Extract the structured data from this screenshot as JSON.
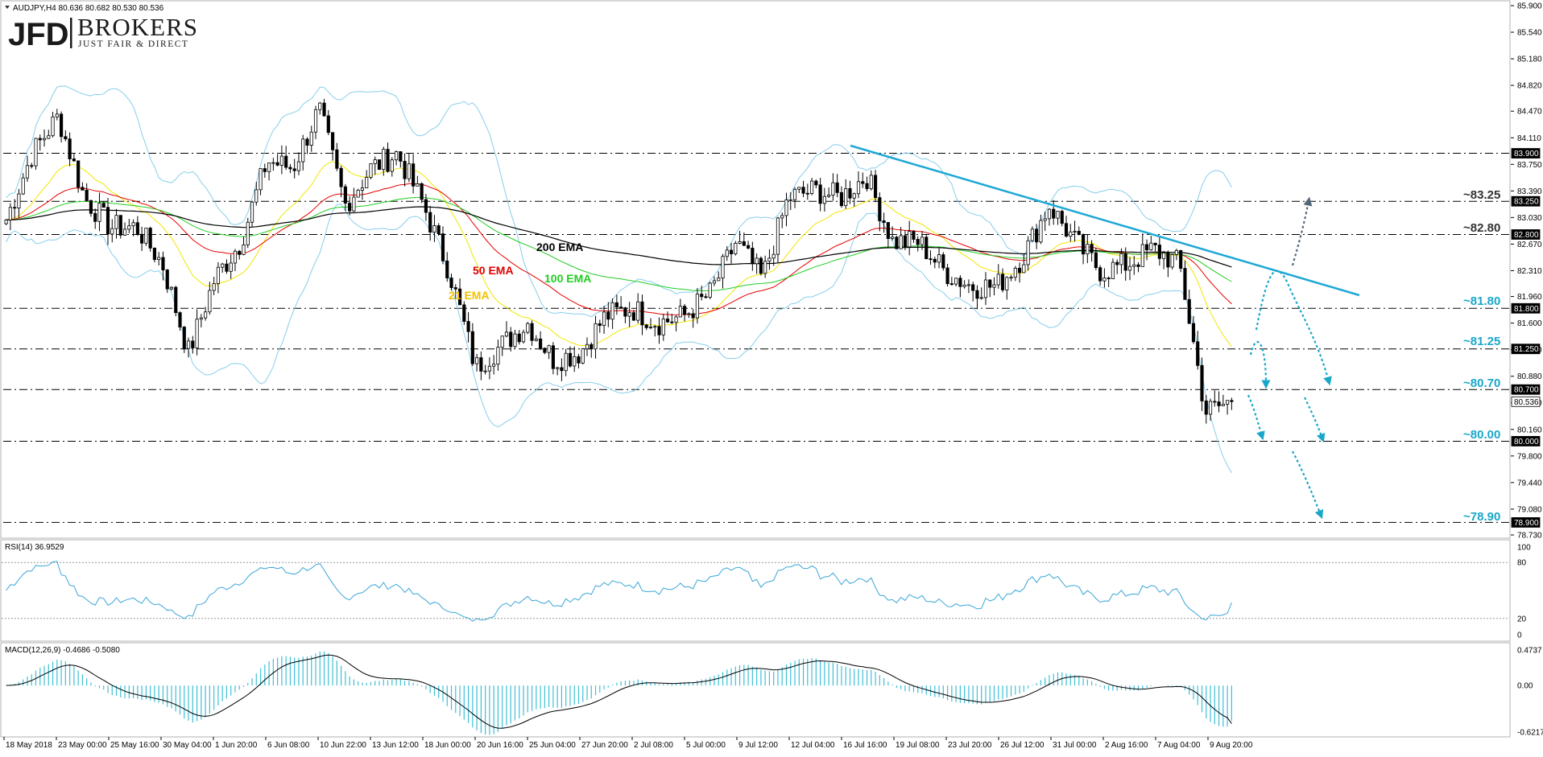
{
  "header": {
    "symbol_line": "AUDJPY,H4  80.636 80.682 80.530 80.536"
  },
  "logo": {
    "brand": "JFD",
    "name": "BROKERS",
    "tagline": "JUST FAIR & DIRECT"
  },
  "colors": {
    "candle": "#000000",
    "bollinger": "#87ceeb",
    "ema21": "#f2e600",
    "ema50": "#e60000",
    "ema100": "#22cc22",
    "ema200": "#000000",
    "trendline": "#1fa8d6",
    "level_label": "#19a7c9",
    "forecast_down": "#19a7c9",
    "forecast_up": "#556677",
    "rsi": "#3aa5d8",
    "macd_hist": "#3fbfd6",
    "macd_signal": "#000000"
  },
  "indicators": {
    "rsi_label": "RSI(14) 36.9529",
    "macd_label": "MACD(12,26,9) -0.4686 -0.5080"
  },
  "price_axis": {
    "ticks": [
      "85.900",
      "85.540",
      "85.180",
      "84.820",
      "84.470",
      "84.110",
      "83.750",
      "83.390",
      "83.030",
      "82.670",
      "82.310",
      "81.960",
      "81.600",
      "81.240",
      "80.880",
      "80.520",
      "80.160",
      "79.800",
      "79.440",
      "79.080",
      "78.730"
    ],
    "boxes": [
      {
        "value": "83.900",
        "price": 83.9
      },
      {
        "value": "83.250",
        "price": 83.25
      },
      {
        "value": "82.800",
        "price": 82.8
      },
      {
        "value": "81.800",
        "price": 81.8
      },
      {
        "value": "81.250",
        "price": 81.25
      },
      {
        "value": "80.700",
        "price": 80.7
      },
      {
        "value": "80.536",
        "price": 80.536
      },
      {
        "value": "80.000",
        "price": 80.0
      },
      {
        "value": "78.900",
        "price": 78.9
      }
    ]
  },
  "rsi_axis": {
    "ticks": [
      "100",
      "80",
      "20",
      "0"
    ]
  },
  "macd_axis": {
    "ticks": [
      "0.4737",
      "0.00",
      "-0.6217"
    ]
  },
  "time_axis": {
    "ticks": [
      "18 May 2018",
      "23 May 00:00",
      "25 May 16:00",
      "30 May 04:00",
      "1 Jun 20:00",
      "6 Jun 08:00",
      "10 Jun 22:00",
      "13 Jun 12:00",
      "18 Jun 00:00",
      "20 Jun 16:00",
      "25 Jun 04:00",
      "27 Jun 20:00",
      "2 Jul 08:00",
      "5 Jul 00:00",
      "9 Jul 12:00",
      "12 Jul 04:00",
      "16 Jul 16:00",
      "19 Jul 08:00",
      "23 Jul 20:00",
      "26 Jul 12:00",
      "31 Jul 00:00",
      "2 Aug 16:00",
      "7 Aug 04:00",
      "9 Aug 20:00"
    ]
  },
  "annotations": {
    "ema_labels": [
      "200 EMA",
      "50 EMA",
      "100 EMA",
      "21 EMA"
    ],
    "level_labels": [
      "~83.25",
      "~82.80",
      "~81.80",
      "~81.25",
      "~80.70",
      "~80.00",
      "~78.90"
    ]
  },
  "chart_data": {
    "type": "candlestick",
    "symbol": "AUDJPY",
    "timeframe": "H4",
    "last": {
      "open": 80.636,
      "high": 80.682,
      "low": 80.53,
      "close": 80.536
    },
    "ylim": [
      78.73,
      85.9
    ],
    "horizontal_levels": [
      83.9,
      83.25,
      82.8,
      81.8,
      81.25,
      80.7,
      80.0,
      78.9
    ],
    "close_path": [
      [
        "18 May 2018",
        83.0
      ],
      [
        "19 May",
        83.9
      ],
      [
        "21 May",
        84.4
      ],
      [
        "22 May",
        83.3
      ],
      [
        "23 May 00:00",
        82.9
      ],
      [
        "24 May",
        82.9
      ],
      [
        "25 May 16:00",
        82.4
      ],
      [
        "27 May",
        81.2
      ],
      [
        "30 May 04:00",
        82.2
      ],
      [
        "31 May",
        82.7
      ],
      [
        "1 Jun 20:00",
        83.8
      ],
      [
        "3 Jun",
        83.7
      ],
      [
        "6 Jun 08:00",
        84.5
      ],
      [
        "8 Jun",
        83.2
      ],
      [
        "10 Jun 22:00",
        83.7
      ],
      [
        "12 Jun",
        83.9
      ],
      [
        "13 Jun 12:00",
        83.2
      ],
      [
        "15 Jun",
        82.3
      ],
      [
        "18 Jun 00:00",
        81.0
      ],
      [
        "20 Jun 16:00",
        81.3
      ],
      [
        "23 Jun",
        81.6
      ],
      [
        "25 Jun 04:00",
        81.1
      ],
      [
        "27 Jun 20:00",
        81.2
      ],
      [
        "29 Jun",
        81.7
      ],
      [
        "2 Jul 08:00",
        81.8
      ],
      [
        "4 Jul",
        81.6
      ],
      [
        "5 Jul 00:00",
        81.7
      ],
      [
        "7 Jul",
        82.0
      ],
      [
        "9 Jul 12:00",
        82.7
      ],
      [
        "11 Jul",
        82.2
      ],
      [
        "12 Jul 04:00",
        83.3
      ],
      [
        "14 Jul",
        83.4
      ],
      [
        "16 Jul 16:00",
        83.3
      ],
      [
        "18 Jul",
        83.6
      ],
      [
        "19 Jul 08:00",
        82.7
      ],
      [
        "21 Jul",
        82.7
      ],
      [
        "23 Jul 20:00",
        82.3
      ],
      [
        "25 Jul",
        82.1
      ],
      [
        "26 Jul 12:00",
        82.1
      ],
      [
        "29 Jul",
        82.5
      ],
      [
        "31 Jul 00:00",
        83.2
      ],
      [
        "1 Aug",
        82.7
      ],
      [
        "2 Aug 16:00",
        82.3
      ],
      [
        "4 Aug",
        82.4
      ],
      [
        "7 Aug 04:00",
        82.6
      ],
      [
        "8 Aug",
        82.4
      ],
      [
        "9 Aug 20:00",
        80.4
      ],
      [
        "10 Aug",
        80.536
      ]
    ],
    "rsi_last": 36.9529,
    "macd_last": -0.4686,
    "macd_signal_last": -0.508
  }
}
